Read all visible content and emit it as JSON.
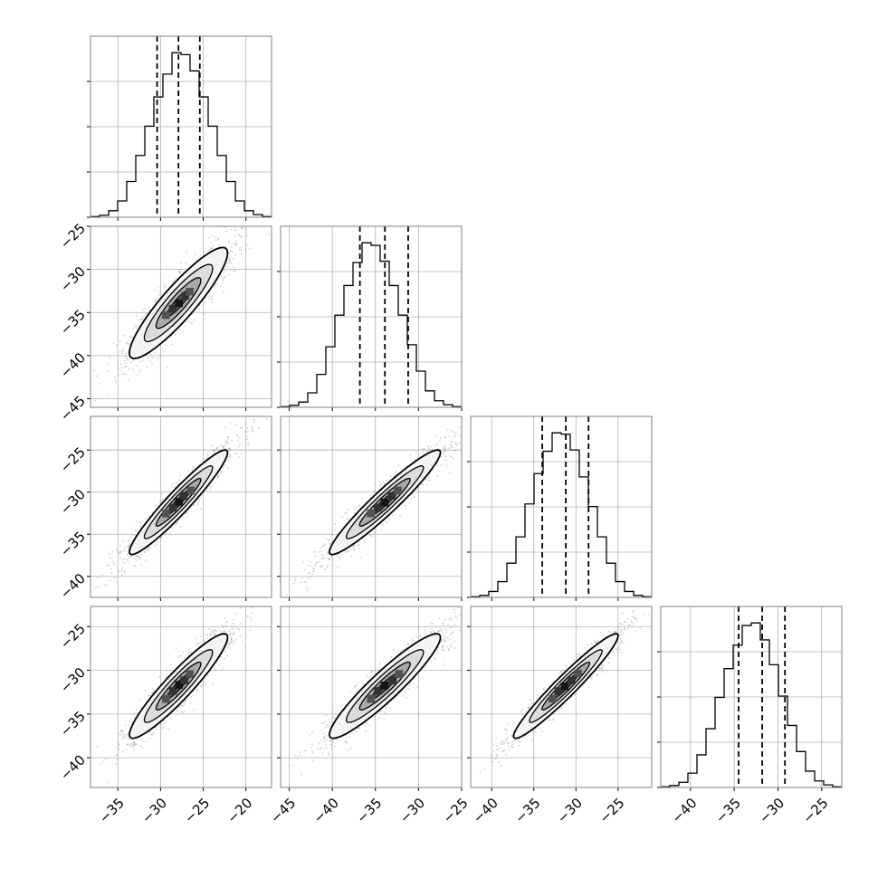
{
  "chart_data": {
    "type": "corner",
    "description_of_panels": "4-parameter corner plot: 1D histograms on the diagonal with dashed quantile lines, 2D density/contour plots below the diagonal, grey scatter of samples",
    "grid": true,
    "histogram_quantiles_dashed": [
      [
        -30.4,
        -27.9,
        -25.4
      ],
      [
        -36.8,
        -33.9,
        -31.2
      ],
      [
        -34.0,
        -31.2,
        -28.5
      ],
      [
        -34.5,
        -31.8,
        -29.2
      ]
    ],
    "axes": {
      "x": [
        {
          "range": [
            -38.2,
            -17.0
          ],
          "ticks": [
            -35,
            -30,
            -25,
            -20
          ],
          "tick_labels": [
            "−35",
            "−30",
            "−25",
            "−20"
          ]
        },
        {
          "range": [
            -46.0,
            -25.0
          ],
          "ticks": [
            -45,
            -40,
            -35,
            -30,
            -25
          ],
          "tick_labels": [
            "−45",
            "−40",
            "−35",
            "−30",
            "−25"
          ]
        },
        {
          "range": [
            -42.5,
            -21.0
          ],
          "ticks": [
            -40,
            -35,
            -30,
            -25
          ],
          "tick_labels": [
            "−40",
            "−35",
            "−30",
            "−25"
          ]
        },
        {
          "range": [
            -43.4,
            -22.7
          ],
          "ticks": [
            -40,
            -35,
            -30,
            -25
          ],
          "tick_labels": [
            "−40",
            "−35",
            "−30",
            "−25"
          ]
        }
      ],
      "y": [
        null,
        {
          "range": [
            -46.0,
            -25.0
          ],
          "ticks": [
            -25,
            -30,
            -35,
            -40,
            -45
          ],
          "tick_labels": [
            "−25",
            "−30",
            "−35",
            "−40",
            "−45"
          ]
        },
        {
          "range": [
            -42.5,
            -21.0
          ],
          "ticks": [
            -25,
            -30,
            -35,
            -40
          ],
          "tick_labels": [
            "−25",
            "−30",
            "−35",
            "−40"
          ]
        },
        {
          "range": [
            -43.4,
            -22.7
          ],
          "ticks": [
            -25,
            -30,
            -35,
            -40
          ],
          "tick_labels": [
            "−25",
            "−30",
            "−35",
            "−40"
          ]
        }
      ]
    },
    "histograms": [
      [
        1,
        3,
        10,
        25,
        55,
        95,
        140,
        185,
        220,
        253,
        250,
        225,
        185,
        140,
        95,
        55,
        25,
        10,
        4,
        1
      ],
      [
        1,
        3,
        8,
        22,
        50,
        92,
        140,
        185,
        220,
        250,
        246,
        222,
        185,
        140,
        95,
        55,
        25,
        10,
        4,
        1
      ],
      [
        1,
        3,
        9,
        24,
        52,
        92,
        142,
        188,
        222,
        250,
        248,
        224,
        183,
        138,
        92,
        52,
        24,
        9,
        3,
        1
      ],
      [
        1,
        3,
        8,
        22,
        50,
        90,
        138,
        182,
        218,
        248,
        252,
        226,
        188,
        140,
        95,
        55,
        25,
        10,
        4,
        1
      ]
    ],
    "pairs": [
      {
        "row": 1,
        "col": 0,
        "mean_x": -27.9,
        "mean_y": -33.9,
        "sigma_x": 2.5,
        "sigma_y": 2.8,
        "correlation": 0.9
      },
      {
        "row": 2,
        "col": 0,
        "mean_x": -27.9,
        "mean_y": -31.2,
        "sigma_x": 2.5,
        "sigma_y": 2.7,
        "correlation": 0.95
      },
      {
        "row": 2,
        "col": 1,
        "mean_x": -33.9,
        "mean_y": -31.2,
        "sigma_x": 2.8,
        "sigma_y": 2.7,
        "correlation": 0.95
      },
      {
        "row": 3,
        "col": 0,
        "mean_x": -27.9,
        "mean_y": -31.8,
        "sigma_x": 2.5,
        "sigma_y": 2.6,
        "correlation": 0.93
      },
      {
        "row": 3,
        "col": 1,
        "mean_x": -33.9,
        "mean_y": -31.8,
        "sigma_x": 2.8,
        "sigma_y": 2.6,
        "correlation": 0.93
      },
      {
        "row": 3,
        "col": 2,
        "mean_x": -31.2,
        "mean_y": -31.8,
        "sigma_x": 2.7,
        "sigma_y": 2.6,
        "correlation": 0.96
      }
    ],
    "colors": {
      "frame": "#808080",
      "grid": "#b0b0b0",
      "line": "#000000",
      "scatter": "#9a9a9a"
    }
  }
}
